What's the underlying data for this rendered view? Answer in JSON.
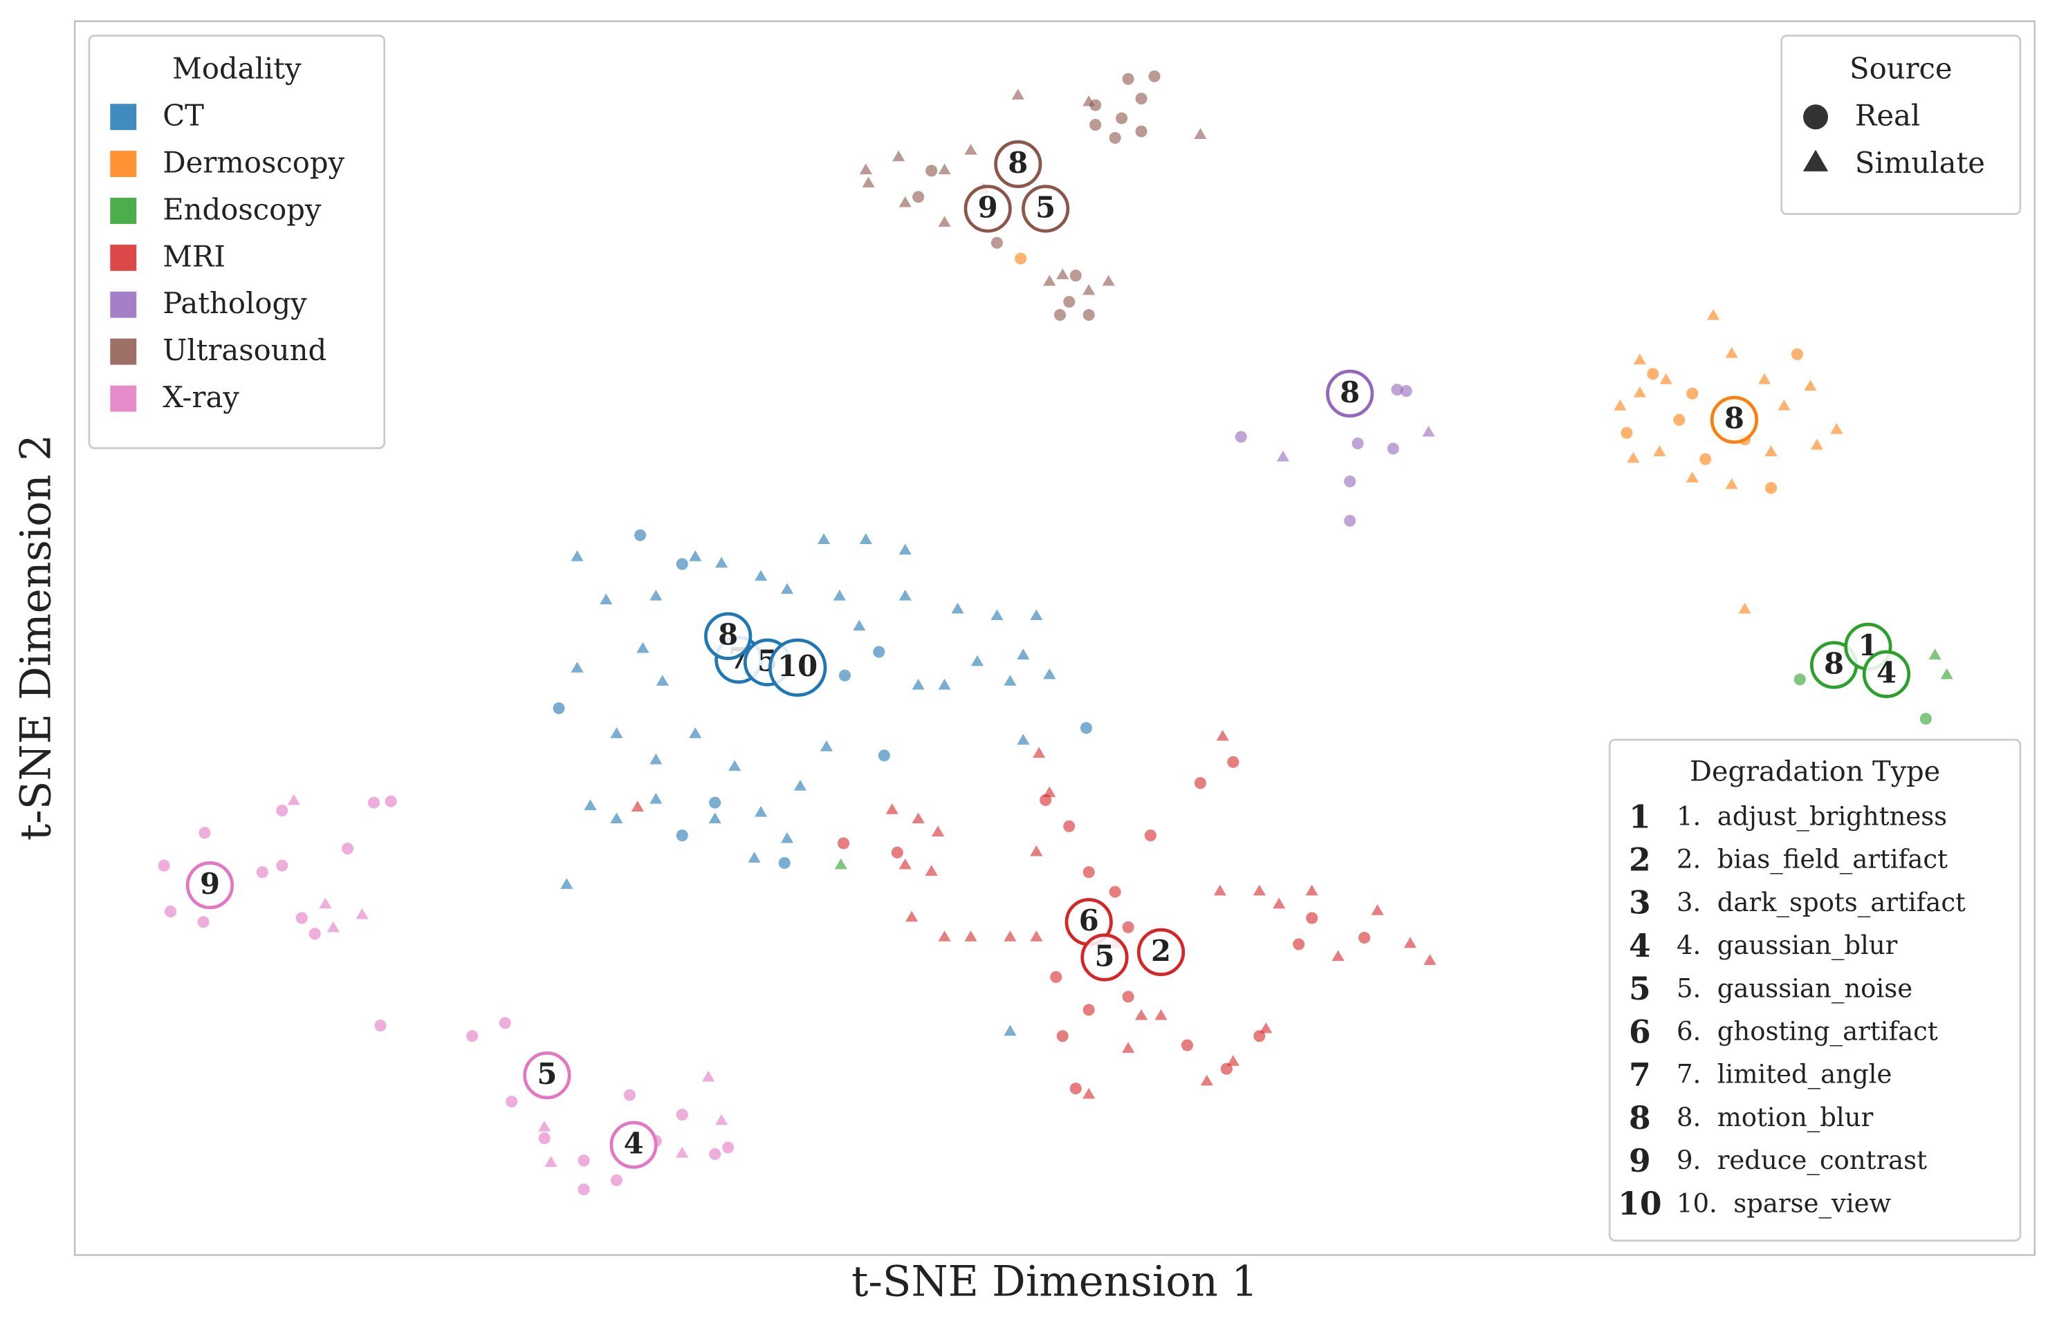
{
  "chart_data": {
    "type": "scatter",
    "xlabel": "t-SNE Dimension 1",
    "ylabel": "t-SNE Dimension 2",
    "xlim": [
      57,
      1551
    ],
    "ylim": [
      -957,
      -16
    ],
    "legend_modality": {
      "title": "Modality",
      "position": "upper left"
    },
    "legend_source": {
      "title": "Source",
      "position": "upper right",
      "entries": [
        {
          "name": "Real",
          "marker": "circle"
        },
        {
          "name": "Simulate",
          "marker": "triangle"
        }
      ]
    },
    "legend_degradation": {
      "title": "Degradation Type",
      "position": "lower right",
      "entries": [
        {
          "number": "1",
          "label": "1.  adjust_brightness"
        },
        {
          "number": "2",
          "label": "2.  bias_field_artifact"
        },
        {
          "number": "3",
          "label": "3.  dark_spots_artifact"
        },
        {
          "number": "4",
          "label": "4.  gaussian_blur"
        },
        {
          "number": "5",
          "label": "5.  gaussian_noise"
        },
        {
          "number": "6",
          "label": "6.  ghosting_artifact"
        },
        {
          "number": "7",
          "label": "7.  limited_angle"
        },
        {
          "number": "8",
          "label": "8.  motion_blur"
        },
        {
          "number": "9",
          "label": "9.  reduce_contrast"
        },
        {
          "number": "10",
          "label": "10.  sparse_view"
        }
      ]
    },
    "series": [
      {
        "name": "CT",
        "color": "#1f77b4",
        "real": {
          "x": [
            488,
            520,
            426,
            644,
            670,
            828,
            674,
            520,
            598,
            545
          ],
          "y": [
            -408,
            -430,
            -540,
            -515,
            -497,
            -555,
            -576,
            -637,
            -658,
            -612
          ]
        },
        "simulate": {
          "x": [
            440,
            462,
            500,
            530,
            550,
            580,
            600,
            628,
            660,
            690,
            640,
            655,
            690,
            730,
            760,
            790,
            780,
            800,
            700,
            720,
            745,
            770,
            505,
            490,
            470,
            500,
            530,
            560,
            450,
            470,
            500,
            545,
            580,
            610,
            600,
            630,
            440,
            780,
            432,
            575,
            770
          ],
          "y": [
            -425,
            -458,
            -455,
            -425,
            -430,
            -440,
            -450,
            -412,
            -412,
            -420,
            -455,
            -478,
            -455,
            -465,
            -470,
            -470,
            -500,
            -515,
            -523,
            -523,
            -505,
            -520,
            -520,
            -495,
            -560,
            -580,
            -560,
            -585,
            -615,
            -625,
            -610,
            -625,
            -620,
            -600,
            -640,
            -570,
            -510,
            -565,
            -675,
            -655,
            -787
          ]
        },
        "degradations": [
          {
            "label": "7",
            "x": 563,
            "y": -503
          },
          {
            "label": "5",
            "x": 585,
            "y": -505
          },
          {
            "label": "8",
            "x": 555,
            "y": -485
          },
          {
            "label": "10",
            "x": 608,
            "y": -509
          }
        ]
      },
      {
        "name": "Dermoscopy",
        "color": "#ff7f0e",
        "real": {
          "x": [
            1260,
            1290,
            1330,
            1350,
            1370,
            1240,
            1300,
            1280,
            778
          ],
          "y": [
            -285,
            -300,
            -335,
            -372,
            -270,
            -330,
            -350,
            -320,
            -197
          ]
        },
        "simulate": {
          "x": [
            1306,
            1250,
            1270,
            1320,
            1345,
            1380,
            1400,
            1385,
            1235,
            1245,
            1265,
            1290,
            1320,
            1350,
            1360,
            1250,
            1330
          ],
          "y": [
            -241,
            -275,
            -290,
            -270,
            -290,
            -295,
            -328,
            -340,
            -310,
            -350,
            -345,
            -365,
            -370,
            -345,
            -310,
            -300,
            -465
          ]
        },
        "degradations": [
          {
            "label": "8",
            "x": 1322,
            "y": -320
          }
        ]
      },
      {
        "name": "Endoscopy",
        "color": "#2ca02c",
        "real": {
          "x": [
            1372,
            1468
          ],
          "y": [
            -518,
            -548
          ]
        },
        "simulate": {
          "x": [
            1475,
            1484,
            641
          ],
          "y": [
            -500,
            -515,
            -660
          ]
        },
        "degradations": [
          {
            "label": "8",
            "x": 1398,
            "y": -507
          },
          {
            "label": "1",
            "x": 1424,
            "y": -493
          },
          {
            "label": "4",
            "x": 1438,
            "y": -514
          }
        ]
      },
      {
        "name": "MRI",
        "color": "#d62728",
        "real": {
          "x": [
            797,
            815,
            830,
            850,
            830,
            810,
            820,
            860,
            877,
            915,
            940,
            905,
            960,
            935,
            990,
            1040,
            1000,
            643,
            684,
            860,
            805
          ],
          "y": [
            -610,
            -630,
            -665,
            -680,
            -770,
            -790,
            -830,
            -707,
            -637,
            -597,
            -581,
            -797,
            -790,
            -815,
            -720,
            -715,
            -700,
            -643,
            -650,
            -760,
            -745
          ]
        },
        "simulate": {
          "x": [
            680,
            700,
            715,
            690,
            710,
            695,
            720,
            740,
            770,
            790,
            800,
            790,
            850,
            870,
            860,
            885,
            830,
            960,
            975,
            1000,
            1020,
            1050,
            1075,
            1090,
            930,
            920,
            940,
            965,
            932,
            792,
            486
          ],
          "y": [
            -618,
            -625,
            -635,
            -660,
            -665,
            -700,
            -715,
            -715,
            -715,
            -715,
            -605,
            -650,
            -720,
            -775,
            -800,
            -775,
            -835,
            -680,
            -690,
            -680,
            -730,
            -695,
            -720,
            -733,
            -680,
            -825,
            -810,
            -785,
            -562,
            -575,
            -616
          ]
        },
        "degradations": [
          {
            "label": "6",
            "x": 830,
            "y": -703
          },
          {
            "label": "5",
            "x": 842,
            "y": -730
          },
          {
            "label": "2",
            "x": 885,
            "y": -726
          }
        ]
      },
      {
        "name": "Pathology",
        "color": "#9467bd",
        "real": {
          "x": [
            1065,
            1072,
            946,
            1035,
            1062,
            1029,
            1029
          ],
          "y": [
            -297,
            -298,
            -333,
            -338,
            -342,
            -367,
            -397
          ]
        },
        "simulate": {
          "x": [
            978,
            1089
          ],
          "y": [
            -349,
            -330
          ]
        },
        "degradations": [
          {
            "label": "8",
            "x": 1029,
            "y": -300
          }
        ]
      },
      {
        "name": "Ultrasound",
        "color": "#8c564b",
        "real": {
          "x": [
            860,
            880,
            870,
            855,
            835,
            870,
            850,
            808,
            815,
            820,
            830,
            700,
            710,
            760,
            835
          ],
          "y": [
            -60,
            -58,
            -75,
            -90,
            -80,
            -100,
            -105,
            -240,
            -230,
            -210,
            -240,
            -150,
            -130,
            -185,
            -95
          ]
        },
        "simulate": {
          "x": [
            776,
            830,
            915,
            660,
            685,
            720,
            740,
            662,
            690,
            720,
            800,
            830,
            845,
            810,
            750
          ],
          "y": [
            -73,
            -78,
            -103,
            -130,
            -120,
            -130,
            -115,
            -140,
            -155,
            -170,
            -215,
            -222,
            -215,
            -210,
            -145
          ]
        },
        "degradations": [
          {
            "label": "8",
            "x": 776,
            "y": -125
          },
          {
            "label": "9",
            "x": 753,
            "y": -159
          },
          {
            "label": "5",
            "x": 797,
            "y": -159
          }
        ]
      },
      {
        "name": "X-ray",
        "color": "#e377c2",
        "real": {
          "x": [
            125,
            156,
            130,
            155,
            200,
            215,
            230,
            240,
            215,
            285,
            298,
            265,
            290,
            360,
            385,
            390,
            415,
            445,
            470,
            480,
            500,
            520,
            545,
            555,
            445
          ],
          "y": [
            -660,
            -635,
            -695,
            -703,
            -665,
            -660,
            -700,
            -712,
            -618,
            -612,
            -611,
            -647,
            -782,
            -790,
            -780,
            -840,
            -868,
            -907,
            -900,
            -835,
            -870,
            -850,
            -880,
            -875,
            -885
          ]
        },
        "simulate": {
          "x": [
            224,
            276,
            254,
            248,
            415,
            420,
            540,
            550,
            520
          ],
          "y": [
            -611,
            -698,
            -708,
            -690,
            -860,
            -887,
            -822,
            -855,
            -880
          ]
        },
        "degradations": [
          {
            "label": "9",
            "x": 160,
            "y": -675
          },
          {
            "label": "5",
            "x": 417,
            "y": -820
          },
          {
            "label": "4",
            "x": 483,
            "y": -873
          }
        ]
      }
    ]
  }
}
